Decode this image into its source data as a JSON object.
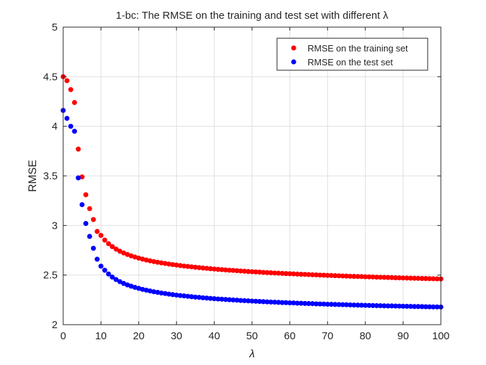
{
  "chart_data": {
    "type": "scatter",
    "title": "1-bc: The RMSE on the training and test set with different λ",
    "xlabel": "λ",
    "ylabel": "RMSE",
    "xlim": [
      0,
      100
    ],
    "ylim": [
      2,
      5
    ],
    "xticks": [
      "0",
      "10",
      "20",
      "30",
      "40",
      "50",
      "60",
      "70",
      "80",
      "90",
      "100"
    ],
    "yticks": [
      "2",
      "2.5",
      "3",
      "3.5",
      "4",
      "4.5",
      "5"
    ],
    "grid": true,
    "legend_position": "top-right",
    "x": [
      0,
      1,
      2,
      3,
      4,
      5,
      6,
      7,
      8,
      9,
      10,
      11,
      12,
      13,
      14,
      15,
      16,
      17,
      18,
      19,
      20,
      21,
      22,
      23,
      24,
      25,
      26,
      27,
      28,
      29,
      30,
      31,
      32,
      33,
      34,
      35,
      36,
      37,
      38,
      39,
      40,
      41,
      42,
      43,
      44,
      45,
      46,
      47,
      48,
      49,
      50,
      51,
      52,
      53,
      54,
      55,
      56,
      57,
      58,
      59,
      60,
      61,
      62,
      63,
      64,
      65,
      66,
      67,
      68,
      69,
      70,
      71,
      72,
      73,
      74,
      75,
      76,
      77,
      78,
      79,
      80,
      81,
      82,
      83,
      84,
      85,
      86,
      87,
      88,
      89,
      90,
      91,
      92,
      93,
      94,
      95,
      96,
      97,
      98,
      99,
      100
    ],
    "series": [
      {
        "name": "RMSE on the training set",
        "color": "#ff0000",
        "values": [
          4.5,
          4.46,
          4.37,
          4.24,
          3.77,
          3.49,
          3.31,
          3.17,
          3.06,
          2.94,
          2.9,
          2.853,
          2.817,
          2.787,
          2.762,
          2.741,
          2.723,
          2.708,
          2.694,
          2.682,
          2.671,
          2.661,
          2.652,
          2.644,
          2.636,
          2.629,
          2.623,
          2.617,
          2.611,
          2.606,
          2.601,
          2.596,
          2.591,
          2.587,
          2.583,
          2.579,
          2.575,
          2.571,
          2.568,
          2.564,
          2.561,
          2.558,
          2.555,
          2.552,
          2.549,
          2.547,
          2.544,
          2.541,
          2.539,
          2.536,
          2.534,
          2.532,
          2.53,
          2.527,
          2.525,
          2.523,
          2.521,
          2.519,
          2.517,
          2.515,
          2.514,
          2.512,
          2.51,
          2.508,
          2.507,
          2.505,
          2.503,
          2.502,
          2.5,
          2.499,
          2.497,
          2.496,
          2.494,
          2.493,
          2.491,
          2.49,
          2.488,
          2.487,
          2.486,
          2.485,
          2.483,
          2.482,
          2.481,
          2.479,
          2.478,
          2.477,
          2.476,
          2.475,
          2.473,
          2.472,
          2.471,
          2.47,
          2.469,
          2.468,
          2.467,
          2.466,
          2.465,
          2.464,
          2.463,
          2.462,
          2.461
        ]
      },
      {
        "name": "RMSE on the test set",
        "color": "#0000ff",
        "values": [
          4.16,
          4.08,
          4.0,
          3.95,
          3.48,
          3.21,
          3.02,
          2.89,
          2.77,
          2.66,
          2.59,
          2.549,
          2.511,
          2.48,
          2.455,
          2.434,
          2.416,
          2.401,
          2.388,
          2.376,
          2.366,
          2.356,
          2.348,
          2.34,
          2.332,
          2.326,
          2.319,
          2.314,
          2.308,
          2.303,
          2.298,
          2.294,
          2.29,
          2.286,
          2.282,
          2.278,
          2.275,
          2.271,
          2.268,
          2.265,
          2.262,
          2.259,
          2.257,
          2.254,
          2.252,
          2.249,
          2.247,
          2.244,
          2.242,
          2.24,
          2.238,
          2.236,
          2.234,
          2.232,
          2.23,
          2.228,
          2.227,
          2.225,
          2.223,
          2.222,
          2.22,
          2.219,
          2.217,
          2.216,
          2.214,
          2.213,
          2.212,
          2.21,
          2.209,
          2.208,
          2.206,
          2.205,
          2.204,
          2.203,
          2.202,
          2.201,
          2.199,
          2.198,
          2.197,
          2.196,
          2.195,
          2.194,
          2.193,
          2.192,
          2.191,
          2.19,
          2.189,
          2.189,
          2.188,
          2.187,
          2.186,
          2.185,
          2.184,
          2.183,
          2.183,
          2.182,
          2.181,
          2.18,
          2.179,
          2.179,
          2.178
        ]
      }
    ]
  }
}
